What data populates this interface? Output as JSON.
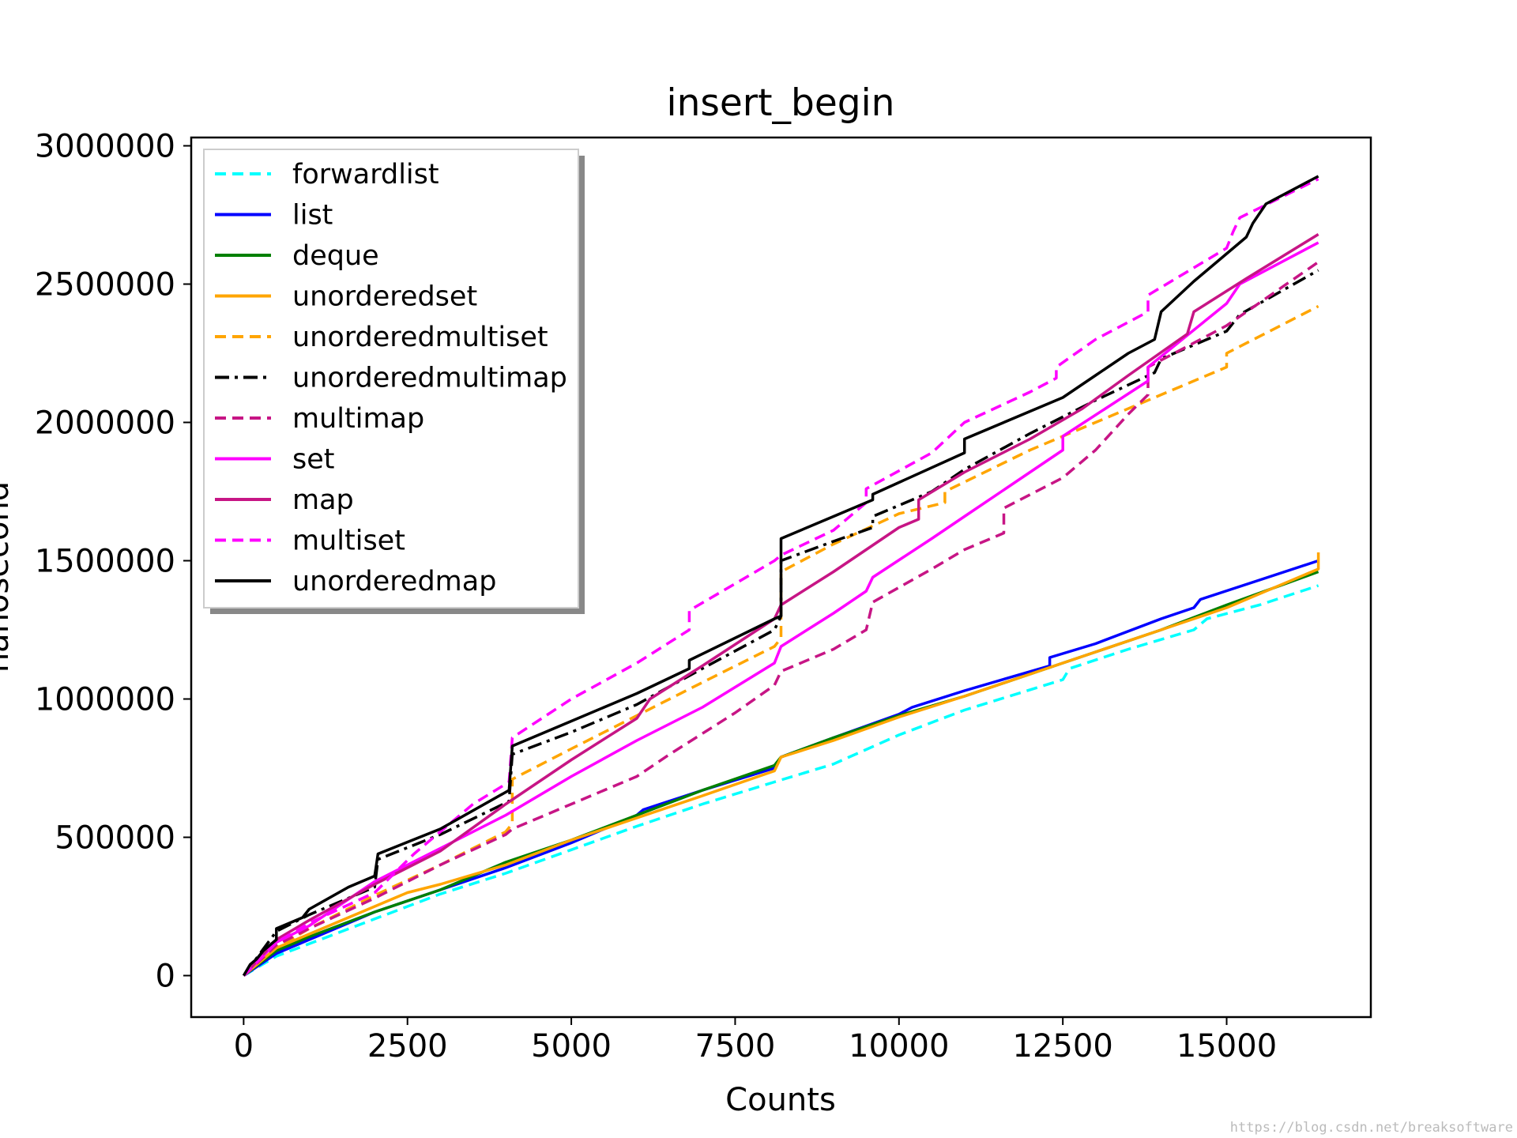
{
  "chart_data": {
    "type": "line",
    "title": "insert_begin",
    "xlabel": "Counts",
    "ylabel": "nanosecond",
    "xlim": [
      -800,
      17200
    ],
    "ylim": [
      -150000,
      3030000
    ],
    "xticks": [
      0,
      2500,
      5000,
      7500,
      10000,
      12500,
      15000
    ],
    "yticks": [
      0,
      500000,
      1000000,
      1500000,
      2000000,
      2500000,
      3000000
    ],
    "grid": false,
    "legend_position": "upper-left",
    "watermark": "https://blog.csdn.net/breaksoftware",
    "series": [
      {
        "name": "forwardlist",
        "color": "#00ffff",
        "dash": "dashed",
        "points": [
          [
            0,
            0
          ],
          [
            500,
            70000
          ],
          [
            1000,
            115000
          ],
          [
            2000,
            205000
          ],
          [
            3000,
            295000
          ],
          [
            4000,
            370000
          ],
          [
            5000,
            455000
          ],
          [
            6000,
            540000
          ],
          [
            7000,
            620000
          ],
          [
            8100,
            700000
          ],
          [
            9000,
            765000
          ],
          [
            10000,
            870000
          ],
          [
            11000,
            960000
          ],
          [
            12500,
            1070000
          ],
          [
            12600,
            1110000
          ],
          [
            13500,
            1180000
          ],
          [
            14500,
            1250000
          ],
          [
            14700,
            1290000
          ],
          [
            15500,
            1340000
          ],
          [
            16400,
            1410000
          ]
        ]
      },
      {
        "name": "list",
        "color": "#0000ff",
        "dash": "solid",
        "points": [
          [
            0,
            0
          ],
          [
            500,
            80000
          ],
          [
            1000,
            130000
          ],
          [
            2000,
            230000
          ],
          [
            3000,
            310000
          ],
          [
            4000,
            390000
          ],
          [
            5000,
            480000
          ],
          [
            6000,
            580000
          ],
          [
            6100,
            600000
          ],
          [
            7000,
            670000
          ],
          [
            8100,
            750000
          ],
          [
            8200,
            790000
          ],
          [
            9000,
            860000
          ],
          [
            10000,
            945000
          ],
          [
            10200,
            970000
          ],
          [
            11000,
            1030000
          ],
          [
            12300,
            1120000
          ],
          [
            12300,
            1150000
          ],
          [
            13000,
            1200000
          ],
          [
            14000,
            1290000
          ],
          [
            14500,
            1330000
          ],
          [
            14600,
            1360000
          ],
          [
            15500,
            1430000
          ],
          [
            16400,
            1500000
          ]
        ]
      },
      {
        "name": "deque",
        "color": "#008000",
        "dash": "solid",
        "points": [
          [
            0,
            0
          ],
          [
            500,
            90000
          ],
          [
            1000,
            140000
          ],
          [
            2000,
            230000
          ],
          [
            3000,
            310000
          ],
          [
            4000,
            410000
          ],
          [
            5000,
            490000
          ],
          [
            6000,
            580000
          ],
          [
            7000,
            670000
          ],
          [
            8100,
            760000
          ],
          [
            8200,
            790000
          ],
          [
            9000,
            860000
          ],
          [
            10000,
            940000
          ],
          [
            11000,
            1010000
          ],
          [
            12000,
            1090000
          ],
          [
            13000,
            1170000
          ],
          [
            14000,
            1250000
          ],
          [
            15000,
            1340000
          ],
          [
            16400,
            1460000
          ]
        ]
      },
      {
        "name": "unorderedset",
        "color": "#ffa500",
        "dash": "solid",
        "points": [
          [
            0,
            0
          ],
          [
            500,
            100000
          ],
          [
            1000,
            150000
          ],
          [
            2000,
            250000
          ],
          [
            2500,
            300000
          ],
          [
            3000,
            330000
          ],
          [
            4000,
            400000
          ],
          [
            5000,
            490000
          ],
          [
            6000,
            570000
          ],
          [
            7000,
            650000
          ],
          [
            8100,
            740000
          ],
          [
            8200,
            790000
          ],
          [
            9000,
            850000
          ],
          [
            10000,
            935000
          ],
          [
            11000,
            1010000
          ],
          [
            12000,
            1090000
          ],
          [
            13000,
            1170000
          ],
          [
            14000,
            1250000
          ],
          [
            15000,
            1330000
          ],
          [
            16400,
            1470000
          ],
          [
            16400,
            1530000
          ]
        ]
      },
      {
        "name": "unorderedmultiset",
        "color": "#ffa500",
        "dash": "dashed",
        "points": [
          [
            0,
            0
          ],
          [
            500,
            100000
          ],
          [
            1000,
            170000
          ],
          [
            2000,
            290000
          ],
          [
            3000,
            400000
          ],
          [
            4000,
            520000
          ],
          [
            4100,
            550000
          ],
          [
            4100,
            710000
          ],
          [
            5000,
            820000
          ],
          [
            6000,
            940000
          ],
          [
            7000,
            1060000
          ],
          [
            8100,
            1190000
          ],
          [
            8200,
            1220000
          ],
          [
            8200,
            1460000
          ],
          [
            9000,
            1560000
          ],
          [
            10000,
            1670000
          ],
          [
            10700,
            1710000
          ],
          [
            10700,
            1750000
          ],
          [
            12000,
            1900000
          ],
          [
            13000,
            2000000
          ],
          [
            14000,
            2100000
          ],
          [
            15000,
            2200000
          ],
          [
            15000,
            2250000
          ],
          [
            16400,
            2420000
          ]
        ]
      },
      {
        "name": "unorderedmultimap",
        "color": "#000000",
        "dash": "dashdot",
        "points": [
          [
            0,
            0
          ],
          [
            500,
            160000
          ],
          [
            1000,
            220000
          ],
          [
            2000,
            320000
          ],
          [
            2050,
            420000
          ],
          [
            3000,
            510000
          ],
          [
            4050,
            630000
          ],
          [
            4100,
            800000
          ],
          [
            5000,
            880000
          ],
          [
            6000,
            980000
          ],
          [
            7000,
            1110000
          ],
          [
            8100,
            1250000
          ],
          [
            8200,
            1300000
          ],
          [
            8200,
            1500000
          ],
          [
            9000,
            1570000
          ],
          [
            9600,
            1620000
          ],
          [
            9600,
            1660000
          ],
          [
            10500,
            1750000
          ],
          [
            11000,
            1830000
          ],
          [
            12000,
            1960000
          ],
          [
            13000,
            2080000
          ],
          [
            13900,
            2180000
          ],
          [
            14000,
            2230000
          ],
          [
            15000,
            2330000
          ],
          [
            15200,
            2390000
          ],
          [
            16400,
            2550000
          ]
        ]
      },
      {
        "name": "multimap",
        "color": "#c71585",
        "dash": "dashed",
        "points": [
          [
            0,
            0
          ],
          [
            500,
            110000
          ],
          [
            1000,
            170000
          ],
          [
            2000,
            280000
          ],
          [
            3000,
            400000
          ],
          [
            4000,
            510000
          ],
          [
            4100,
            530000
          ],
          [
            5000,
            620000
          ],
          [
            6000,
            720000
          ],
          [
            6500,
            800000
          ],
          [
            7500,
            950000
          ],
          [
            8100,
            1050000
          ],
          [
            8200,
            1100000
          ],
          [
            9000,
            1180000
          ],
          [
            9500,
            1250000
          ],
          [
            9600,
            1350000
          ],
          [
            10500,
            1470000
          ],
          [
            11000,
            1540000
          ],
          [
            11600,
            1600000
          ],
          [
            11600,
            1690000
          ],
          [
            12500,
            1800000
          ],
          [
            13000,
            1900000
          ],
          [
            13500,
            2030000
          ],
          [
            13800,
            2100000
          ],
          [
            13800,
            2200000
          ],
          [
            15000,
            2350000
          ],
          [
            16400,
            2580000
          ]
        ]
      },
      {
        "name": "set",
        "color": "#ff00ff",
        "dash": "solid",
        "points": [
          [
            0,
            0
          ],
          [
            500,
            120000
          ],
          [
            1000,
            180000
          ],
          [
            2000,
            340000
          ],
          [
            3000,
            460000
          ],
          [
            4000,
            580000
          ],
          [
            5000,
            720000
          ],
          [
            6000,
            850000
          ],
          [
            7000,
            970000
          ],
          [
            8100,
            1130000
          ],
          [
            8200,
            1190000
          ],
          [
            9000,
            1310000
          ],
          [
            9500,
            1390000
          ],
          [
            9600,
            1440000
          ],
          [
            10500,
            1580000
          ],
          [
            11000,
            1660000
          ],
          [
            12000,
            1820000
          ],
          [
            12500,
            1900000
          ],
          [
            12500,
            1950000
          ],
          [
            13800,
            2150000
          ],
          [
            13800,
            2200000
          ],
          [
            15000,
            2430000
          ],
          [
            15200,
            2500000
          ],
          [
            16400,
            2650000
          ]
        ]
      },
      {
        "name": "map",
        "color": "#c71585",
        "dash": "solid",
        "points": [
          [
            0,
            0
          ],
          [
            500,
            130000
          ],
          [
            1000,
            200000
          ],
          [
            2000,
            330000
          ],
          [
            3000,
            450000
          ],
          [
            4000,
            620000
          ],
          [
            5000,
            780000
          ],
          [
            6000,
            930000
          ],
          [
            6200,
            1000000
          ],
          [
            7000,
            1120000
          ],
          [
            8100,
            1290000
          ],
          [
            8200,
            1340000
          ],
          [
            9000,
            1460000
          ],
          [
            10000,
            1620000
          ],
          [
            10300,
            1650000
          ],
          [
            10300,
            1720000
          ],
          [
            11000,
            1820000
          ],
          [
            12000,
            1940000
          ],
          [
            12800,
            2050000
          ],
          [
            13500,
            2170000
          ],
          [
            14400,
            2320000
          ],
          [
            14500,
            2400000
          ],
          [
            15300,
            2520000
          ],
          [
            16400,
            2680000
          ]
        ]
      },
      {
        "name": "multiset",
        "color": "#ff00ff",
        "dash": "dashed",
        "points": [
          [
            0,
            0
          ],
          [
            500,
            120000
          ],
          [
            1000,
            190000
          ],
          [
            2000,
            300000
          ],
          [
            2600,
            440000
          ],
          [
            3000,
            520000
          ],
          [
            3500,
            620000
          ],
          [
            4050,
            700000
          ],
          [
            4100,
            860000
          ],
          [
            5000,
            1000000
          ],
          [
            6000,
            1130000
          ],
          [
            6800,
            1250000
          ],
          [
            6800,
            1320000
          ],
          [
            8100,
            1500000
          ],
          [
            8200,
            1520000
          ],
          [
            9000,
            1610000
          ],
          [
            9500,
            1710000
          ],
          [
            9500,
            1760000
          ],
          [
            10500,
            1890000
          ],
          [
            11000,
            2000000
          ],
          [
            12000,
            2110000
          ],
          [
            12400,
            2160000
          ],
          [
            12400,
            2200000
          ],
          [
            13000,
            2300000
          ],
          [
            13800,
            2400000
          ],
          [
            13800,
            2460000
          ],
          [
            15000,
            2630000
          ],
          [
            15100,
            2690000
          ],
          [
            15200,
            2740000
          ],
          [
            16400,
            2880000
          ]
        ]
      },
      {
        "name": "unorderedmap",
        "color": "#000000",
        "dash": "solid",
        "points": [
          [
            0,
            0
          ],
          [
            100,
            40000
          ],
          [
            200,
            60000
          ],
          [
            300,
            90000
          ],
          [
            400,
            110000
          ],
          [
            500,
            130000
          ],
          [
            500,
            170000
          ],
          [
            900,
            210000
          ],
          [
            1000,
            240000
          ],
          [
            1600,
            320000
          ],
          [
            2000,
            360000
          ],
          [
            2050,
            440000
          ],
          [
            3000,
            530000
          ],
          [
            4050,
            670000
          ],
          [
            4100,
            830000
          ],
          [
            5000,
            920000
          ],
          [
            6000,
            1020000
          ],
          [
            6800,
            1110000
          ],
          [
            6800,
            1140000
          ],
          [
            8100,
            1290000
          ],
          [
            8200,
            1300000
          ],
          [
            8200,
            1580000
          ],
          [
            9000,
            1660000
          ],
          [
            9600,
            1720000
          ],
          [
            9600,
            1740000
          ],
          [
            11000,
            1890000
          ],
          [
            11000,
            1940000
          ],
          [
            12500,
            2090000
          ],
          [
            13000,
            2170000
          ],
          [
            13500,
            2250000
          ],
          [
            13900,
            2300000
          ],
          [
            14000,
            2400000
          ],
          [
            14500,
            2510000
          ],
          [
            15300,
            2670000
          ],
          [
            15400,
            2720000
          ],
          [
            15600,
            2790000
          ],
          [
            16400,
            2890000
          ]
        ]
      }
    ]
  }
}
